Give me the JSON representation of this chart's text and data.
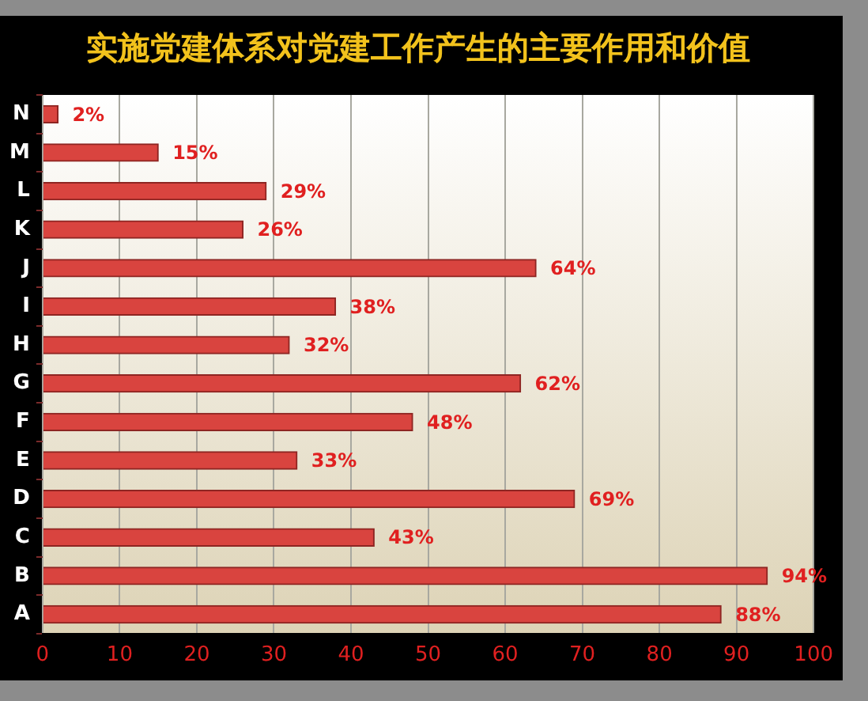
{
  "chart_data": {
    "type": "bar",
    "orientation": "horizontal",
    "title": "实施党建体系对党建工作产生的主要作用和价值",
    "categories": [
      "N",
      "M",
      "L",
      "K",
      "J",
      "I",
      "H",
      "G",
      "F",
      "E",
      "D",
      "C",
      "B",
      "A"
    ],
    "values": [
      2,
      15,
      29,
      26,
      64,
      38,
      32,
      62,
      48,
      33,
      69,
      43,
      94,
      88
    ],
    "value_labels": [
      "2%",
      "15%",
      "29%",
      "26%",
      "64%",
      "38%",
      "32%",
      "62%",
      "48%",
      "33%",
      "69%",
      "43%",
      "94%",
      "88%"
    ],
    "color": "#d9443f",
    "xlim": [
      0,
      100
    ],
    "xticks": [
      0,
      10,
      20,
      30,
      40,
      50,
      60,
      70,
      80,
      90,
      100
    ],
    "grid": "x",
    "legend": false
  }
}
